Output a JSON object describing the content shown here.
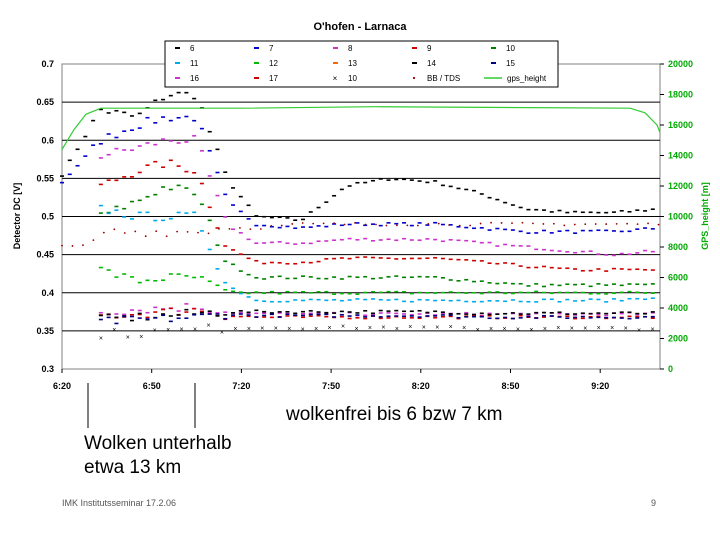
{
  "chart_data": {
    "type": "scatter",
    "title": "O'hofen - Larnaca",
    "ylabel": "Detector DC [V]",
    "y2label": "GPS_height [m]",
    "ylim": [
      0.3,
      0.7
    ],
    "y2lim": [
      0,
      20000
    ],
    "xlim": [
      "6:20",
      "9:40"
    ],
    "grid": "horizontal",
    "yticks": [
      "0.3",
      "0.35",
      "0.4",
      "0.45",
      "0.5",
      "0.55",
      "0.6",
      "0.65",
      "0.7"
    ],
    "y2ticks": [
      "0",
      "2000",
      "4000",
      "6000",
      "8000",
      "10000",
      "12000",
      "14000",
      "16000",
      "18000",
      "20000"
    ],
    "xticks": [
      "6:20",
      "6:50",
      "7:20",
      "7:50",
      "8:20",
      "8:50",
      "9:20"
    ],
    "legend_position": "top",
    "legend": [
      {
        "label": "6",
        "color": "#000000",
        "marker": "dash"
      },
      {
        "label": "7",
        "color": "#0000cc",
        "marker": "dash"
      },
      {
        "label": "8",
        "color": "#cc33cc",
        "marker": "dash"
      },
      {
        "label": "9",
        "color": "#cc0000",
        "marker": "dash"
      },
      {
        "label": "10",
        "color": "#008000",
        "marker": "dash"
      },
      {
        "label": "11",
        "color": "#00aaee",
        "marker": "dash"
      },
      {
        "label": "12",
        "color": "#00bb00",
        "marker": "dash"
      },
      {
        "label": "13",
        "color": "#ff6600",
        "marker": "dash"
      },
      {
        "label": "14",
        "color": "#000000",
        "marker": "dash"
      },
      {
        "label": "15",
        "color": "#000080",
        "marker": "dash"
      },
      {
        "label": "16",
        "color": "#cc33cc",
        "marker": "dash"
      },
      {
        "label": "17",
        "color": "#cc0000",
        "marker": "dash"
      },
      {
        "label": "10",
        "color": "#000000",
        "marker": "x"
      },
      {
        "label": "BB / TDS",
        "color": "#990000",
        "marker": "dot"
      },
      {
        "label": "gps_height",
        "color": "#33cc33",
        "marker": "line"
      }
    ],
    "gps_height": [
      {
        "x": "6:20",
        "y": 14400
      },
      {
        "x": "6:24",
        "y": 15700
      },
      {
        "x": "6:28",
        "y": 16700
      },
      {
        "x": "6:33",
        "y": 17100
      },
      {
        "x": "7:20",
        "y": 17100
      },
      {
        "x": "8:05",
        "y": 17200
      },
      {
        "x": "9:30",
        "y": 17100
      },
      {
        "x": "9:35",
        "y": 16800
      },
      {
        "x": "9:39",
        "y": 16000
      },
      {
        "x": "9:40",
        "y": 15500
      }
    ],
    "series_levels": [
      {
        "name": "14",
        "color": "#000000",
        "points": [
          [
            "6:20",
            0.555
          ],
          [
            "6:33",
            0.64
          ],
          [
            "6:45",
            0.63
          ],
          [
            "6:55",
            0.66
          ],
          [
            "7:05",
            0.66
          ],
          [
            "7:15",
            0.55
          ],
          [
            "7:25",
            0.5
          ],
          [
            "7:40",
            0.495
          ],
          [
            "7:55",
            0.54
          ],
          [
            "8:10",
            0.55
          ],
          [
            "8:25",
            0.545
          ],
          [
            "8:40",
            0.53
          ],
          [
            "8:55",
            0.51
          ],
          [
            "9:10",
            0.505
          ],
          [
            "9:25",
            0.505
          ],
          [
            "9:40",
            0.51
          ]
        ]
      },
      {
        "name": "7",
        "color": "#0000cc",
        "points": [
          [
            "6:20",
            0.545
          ],
          [
            "6:33",
            0.6
          ],
          [
            "6:45",
            0.62
          ],
          [
            "6:55",
            0.63
          ],
          [
            "7:05",
            0.63
          ],
          [
            "7:15",
            0.52
          ],
          [
            "7:25",
            0.49
          ],
          [
            "7:40",
            0.485
          ],
          [
            "7:55",
            0.49
          ],
          [
            "8:10",
            0.49
          ],
          [
            "8:25",
            0.49
          ],
          [
            "8:40",
            0.485
          ],
          [
            "8:55",
            0.48
          ],
          [
            "9:10",
            0.48
          ],
          [
            "9:25",
            0.48
          ],
          [
            "9:40",
            0.485
          ]
        ]
      },
      {
        "name": "8",
        "color": "#cc33cc",
        "points": [
          [
            "6:33",
            0.58
          ],
          [
            "6:45",
            0.59
          ],
          [
            "6:55",
            0.6
          ],
          [
            "7:05",
            0.6
          ],
          [
            "7:15",
            0.49
          ],
          [
            "7:25",
            0.465
          ],
          [
            "7:40",
            0.465
          ],
          [
            "7:55",
            0.47
          ],
          [
            "8:10",
            0.47
          ],
          [
            "8:25",
            0.47
          ],
          [
            "8:40",
            0.465
          ],
          [
            "8:55",
            0.46
          ],
          [
            "9:10",
            0.455
          ],
          [
            "9:25",
            0.45
          ],
          [
            "9:40",
            0.455
          ]
        ]
      },
      {
        "name": "9",
        "color": "#cc0000",
        "points": [
          [
            "6:33",
            0.54
          ],
          [
            "6:45",
            0.56
          ],
          [
            "6:55",
            0.57
          ],
          [
            "7:05",
            0.56
          ],
          [
            "7:15",
            0.46
          ],
          [
            "7:25",
            0.44
          ],
          [
            "7:40",
            0.44
          ],
          [
            "7:55",
            0.445
          ],
          [
            "8:10",
            0.445
          ],
          [
            "8:25",
            0.445
          ],
          [
            "8:40",
            0.44
          ],
          [
            "8:55",
            0.435
          ],
          [
            "9:10",
            0.43
          ],
          [
            "9:25",
            0.43
          ],
          [
            "9:40",
            0.43
          ]
        ]
      },
      {
        "name": "10",
        "color": "#008000",
        "points": [
          [
            "6:33",
            0.5
          ],
          [
            "6:45",
            0.52
          ],
          [
            "6:55",
            0.54
          ],
          [
            "7:05",
            0.53
          ],
          [
            "7:15",
            0.44
          ],
          [
            "7:25",
            0.42
          ],
          [
            "7:40",
            0.42
          ],
          [
            "7:55",
            0.42
          ],
          [
            "8:10",
            0.42
          ],
          [
            "8:25",
            0.42
          ],
          [
            "8:40",
            0.415
          ],
          [
            "8:55",
            0.41
          ],
          [
            "9:10",
            0.41
          ],
          [
            "9:25",
            0.41
          ],
          [
            "9:40",
            0.41
          ]
        ]
      },
      {
        "name": "11",
        "color": "#00aaee",
        "points": [
          [
            "6:33",
            0.51
          ],
          [
            "6:45",
            0.5
          ],
          [
            "6:55",
            0.5
          ],
          [
            "7:05",
            0.5
          ],
          [
            "7:15",
            0.41
          ],
          [
            "7:25",
            0.39
          ],
          [
            "7:40",
            0.39
          ],
          [
            "7:55",
            0.39
          ],
          [
            "8:10",
            0.39
          ],
          [
            "8:25",
            0.39
          ],
          [
            "8:40",
            0.39
          ],
          [
            "8:55",
            0.39
          ],
          [
            "9:10",
            0.39
          ],
          [
            "9:25",
            0.39
          ],
          [
            "9:40",
            0.395
          ]
        ]
      },
      {
        "name": "12",
        "color": "#00bb00",
        "points": [
          [
            "6:33",
            0.43
          ],
          [
            "6:45",
            0.415
          ],
          [
            "6:55",
            0.42
          ],
          [
            "7:05",
            0.42
          ],
          [
            "7:15",
            0.4
          ],
          [
            "7:25",
            0.4
          ],
          [
            "7:40",
            0.4
          ],
          [
            "7:55",
            0.4
          ],
          [
            "8:10",
            0.4
          ],
          [
            "8:25",
            0.4
          ],
          [
            "8:40",
            0.4
          ],
          [
            "8:55",
            0.4
          ],
          [
            "9:10",
            0.4
          ],
          [
            "9:25",
            0.4
          ],
          [
            "9:40",
            0.4
          ]
        ]
      },
      {
        "name": "16",
        "color": "#cc33cc",
        "points": [
          [
            "6:33",
            0.375
          ],
          [
            "6:45",
            0.378
          ],
          [
            "6:55",
            0.38
          ],
          [
            "7:05",
            0.382
          ],
          [
            "7:15",
            0.375
          ],
          [
            "7:25",
            0.372
          ],
          [
            "7:40",
            0.372
          ],
          [
            "7:55",
            0.372
          ],
          [
            "8:10",
            0.372
          ],
          [
            "8:25",
            0.372
          ],
          [
            "8:40",
            0.372
          ],
          [
            "8:55",
            0.372
          ],
          [
            "9:10",
            0.372
          ],
          [
            "9:25",
            0.372
          ],
          [
            "9:40",
            0.372
          ]
        ]
      },
      {
        "name": "17",
        "color": "#cc0000",
        "points": [
          [
            "6:33",
            0.37
          ],
          [
            "6:45",
            0.372
          ],
          [
            "6:55",
            0.375
          ],
          [
            "7:05",
            0.378
          ],
          [
            "7:15",
            0.37
          ],
          [
            "7:25",
            0.368
          ],
          [
            "7:40",
            0.368
          ],
          [
            "7:55",
            0.368
          ],
          [
            "8:10",
            0.368
          ],
          [
            "8:25",
            0.368
          ],
          [
            "8:40",
            0.368
          ],
          [
            "8:55",
            0.368
          ],
          [
            "9:10",
            0.368
          ],
          [
            "9:25",
            0.368
          ],
          [
            "9:40",
            0.368
          ]
        ]
      },
      {
        "name": "6",
        "color": "#000000",
        "points": [
          [
            "6:33",
            0.365
          ],
          [
            "6:45",
            0.368
          ],
          [
            "6:55",
            0.37
          ],
          [
            "7:05",
            0.373
          ],
          [
            "7:15",
            0.375
          ],
          [
            "7:25",
            0.375
          ],
          [
            "7:40",
            0.375
          ],
          [
            "7:55",
            0.375
          ],
          [
            "8:10",
            0.375
          ],
          [
            "8:25",
            0.375
          ],
          [
            "8:40",
            0.373
          ],
          [
            "8:55",
            0.373
          ],
          [
            "9:10",
            0.373
          ],
          [
            "9:25",
            0.373
          ],
          [
            "9:40",
            0.373
          ]
        ]
      },
      {
        "name": "15",
        "color": "#000080",
        "points": [
          [
            "6:33",
            0.362
          ],
          [
            "6:45",
            0.364
          ],
          [
            "6:55",
            0.366
          ],
          [
            "7:05",
            0.368
          ],
          [
            "7:15",
            0.372
          ],
          [
            "7:25",
            0.37
          ],
          [
            "7:40",
            0.37
          ],
          [
            "7:55",
            0.37
          ],
          [
            "8:10",
            0.37
          ],
          [
            "8:25",
            0.37
          ],
          [
            "8:40",
            0.368
          ],
          [
            "8:55",
            0.368
          ],
          [
            "9:10",
            0.368
          ],
          [
            "9:25",
            0.368
          ],
          [
            "9:40",
            0.368
          ]
        ]
      },
      {
        "name": "10 (x)",
        "color": "#000000",
        "marker": "x",
        "points": [
          [
            "6:33",
            0.347
          ],
          [
            "6:45",
            0.348
          ],
          [
            "6:55",
            0.35
          ],
          [
            "7:05",
            0.352
          ],
          [
            "7:15",
            0.355
          ],
          [
            "7:25",
            0.355
          ],
          [
            "7:40",
            0.355
          ],
          [
            "7:55",
            0.355
          ],
          [
            "8:10",
            0.355
          ],
          [
            "8:25",
            0.355
          ],
          [
            "8:40",
            0.354
          ],
          [
            "8:55",
            0.354
          ],
          [
            "9:10",
            0.354
          ],
          [
            "9:25",
            0.354
          ],
          [
            "9:40",
            0.354
          ]
        ]
      },
      {
        "name": "BB / TDS",
        "color": "#990000",
        "marker": "dot",
        "points": [
          [
            "6:20",
            0.46
          ],
          [
            "6:30",
            0.462
          ],
          [
            "6:33",
            0.48
          ],
          [
            "6:45",
            0.48
          ],
          [
            "6:55",
            0.48
          ],
          [
            "7:05",
            0.48
          ],
          [
            "7:15",
            0.485
          ],
          [
            "7:25",
            0.485
          ],
          [
            "7:40",
            0.49
          ],
          [
            "7:55",
            0.49
          ],
          [
            "8:10",
            0.49
          ],
          [
            "8:25",
            0.49
          ],
          [
            "8:40",
            0.49
          ],
          [
            "8:55",
            0.49
          ],
          [
            "9:10",
            0.49
          ],
          [
            "9:25",
            0.49
          ],
          [
            "9:40",
            0.49
          ]
        ]
      }
    ]
  },
  "annotations": {
    "clear": "wolkenfrei bis 6 bzw 7 km",
    "clouds_line1": "Wolken unterhalb",
    "clouds_line2": "etwa 13 km"
  },
  "footer": {
    "left": "IMK Institutsseminar  17.2.06",
    "right": "9"
  }
}
